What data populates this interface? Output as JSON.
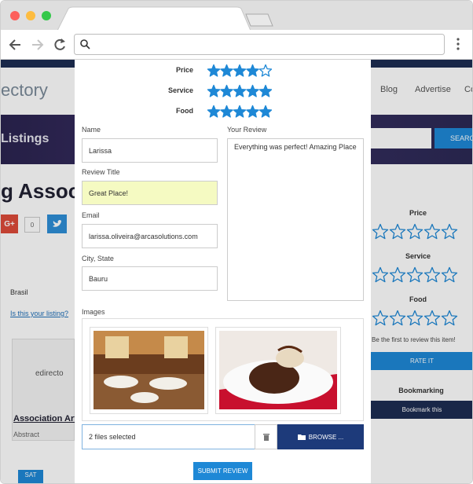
{
  "background_page": {
    "logo": "ectory",
    "nav": [
      "Blog",
      "Advertise",
      "Co"
    ],
    "hero_title": "Listings",
    "search_button": "SEARC",
    "listing_title": "g Associ",
    "social": {
      "google": "G+",
      "count": 0
    },
    "location": "Brasil",
    "claim_link": "Is this your listing?",
    "card": {
      "logo": "edirecto",
      "title": "Association Art",
      "category": "Abstract",
      "day": "SAT"
    },
    "sidebar": {
      "ratings": [
        {
          "label": "Price",
          "value": 0,
          "max": 5
        },
        {
          "label": "Service",
          "value": 0,
          "max": 5
        },
        {
          "label": "Food",
          "value": 0,
          "max": 5
        }
      ],
      "note": "Be the first to review this item!",
      "rate_button": "RATE IT",
      "bookmark_title": "Bookmarking",
      "bookmark_button": "Bookmark this"
    }
  },
  "modal": {
    "ratings": [
      {
        "label": "Price",
        "value": 4,
        "max": 5
      },
      {
        "label": "Service",
        "value": 5,
        "max": 5
      },
      {
        "label": "Food",
        "value": 5,
        "max": 5
      }
    ],
    "form": {
      "name": {
        "label": "Name",
        "value": "Larissa"
      },
      "review_title": {
        "label": "Review Title",
        "value": "Great Place!"
      },
      "email": {
        "label": "Email",
        "value": "larissa.oliveira@arcasolutions.com"
      },
      "city_state": {
        "label": "City, State",
        "value": "Bauru"
      },
      "review": {
        "label": "Your Review",
        "value": "Everything was perfect! Amazing Place"
      }
    },
    "images": {
      "label": "Images",
      "files_selected": "2 files selected",
      "browse_button": "BROWSE ..."
    },
    "submit_button": "SUBMIT REVIEW"
  }
}
